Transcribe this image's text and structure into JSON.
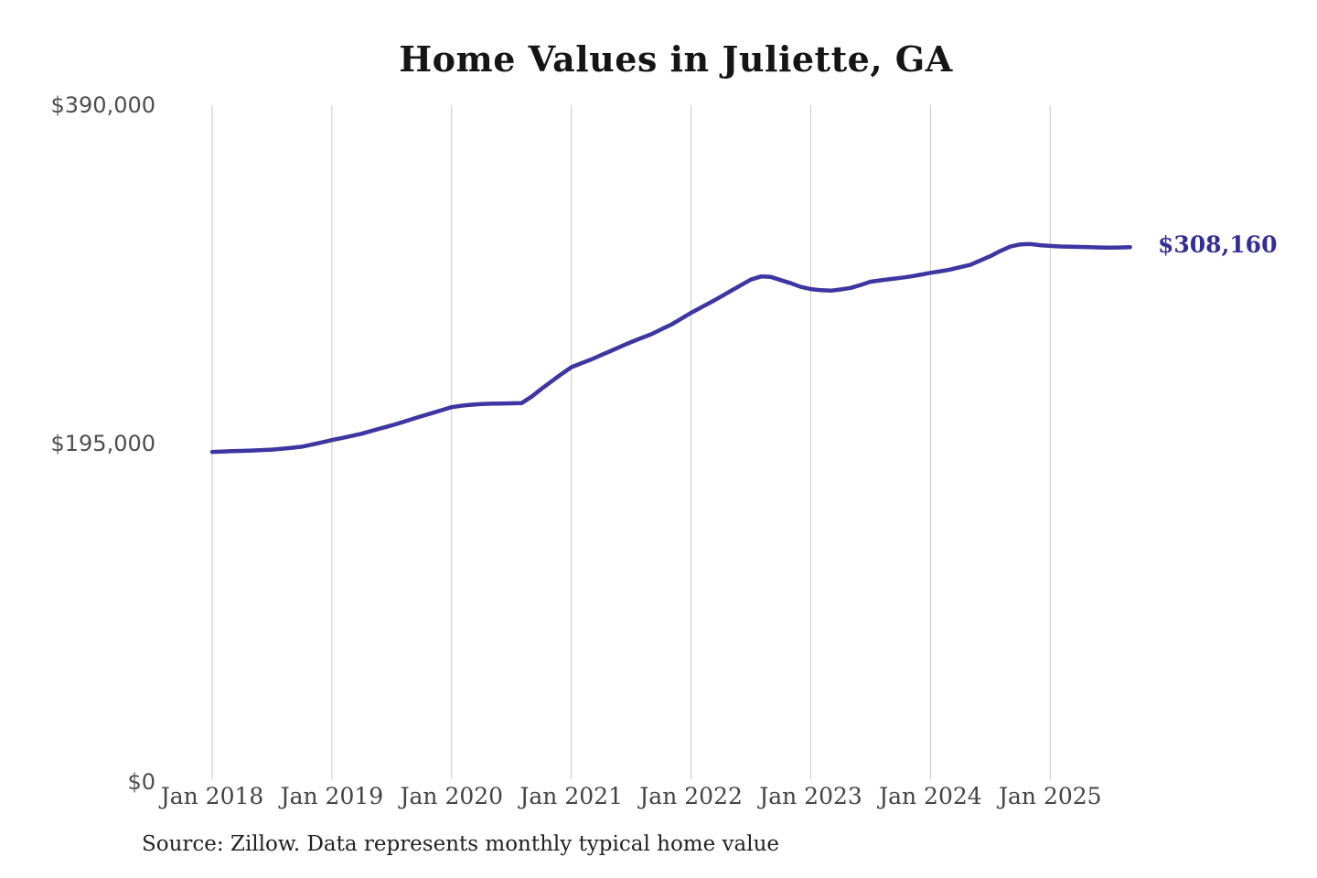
{
  "page": {
    "title": "Home Values in Juliette, GA",
    "source_note": "Source: Zillow. Data represents monthly typical home value"
  },
  "colors": {
    "line": "#3d35a1",
    "end_label": "#342d97",
    "grid": "#c9c9c9",
    "y_tick_text": "#4d4d4d",
    "x_tick_text": "#434343",
    "title_text": "#151515",
    "source_text": "#222222",
    "background": "#ffffff"
  },
  "chart_data": {
    "type": "line",
    "title": "Home Values in Juliette, GA",
    "xlabel": "",
    "ylabel": "",
    "x_start": "2018-01",
    "x_end": "2025-09",
    "x_interval": "monthly",
    "x_tick_labels": [
      "Jan 2018",
      "Jan 2019",
      "Jan 2020",
      "Jan 2021",
      "Jan 2022",
      "Jan 2023",
      "Jan 2024",
      "Jan 2025"
    ],
    "y_ticks": [
      {
        "label": "$0",
        "value": 0
      },
      {
        "label": "$195,000",
        "value": 195000
      },
      {
        "label": "$390,000",
        "value": 390000
      }
    ],
    "ylim": [
      0,
      390000
    ],
    "grid": "vertical-only",
    "legend": "none",
    "end_value": 308160,
    "end_value_label": "$308,160",
    "series": [
      {
        "name": "Monthly typical home value",
        "values": [
          190200,
          190400,
          190600,
          190800,
          191000,
          191250,
          191500,
          192050,
          192600,
          193200,
          194400,
          195700,
          197000,
          198200,
          199450,
          200700,
          202300,
          203900,
          205500,
          207250,
          209000,
          210800,
          212500,
          214250,
          216000,
          216800,
          217400,
          217800,
          218000,
          218100,
          218200,
          218300,
          222000,
          226500,
          230800,
          235000,
          239000,
          241250,
          243500,
          246000,
          248500,
          251000,
          253500,
          255800,
          258000,
          260800,
          263500,
          266900,
          270300,
          273400,
          276500,
          279700,
          283000,
          286300,
          289500,
          291300,
          291000,
          289200,
          287400,
          285300,
          284000,
          283400,
          283100,
          283800,
          284700,
          286400,
          288300,
          289100,
          289800,
          290500,
          291300,
          292300,
          293400,
          294300,
          295300,
          296650,
          298000,
          300500,
          303000,
          306000,
          308500,
          309800,
          310000,
          309300,
          308900,
          308600,
          308400,
          308300,
          308200,
          308000,
          307900,
          308000,
          308160
        ]
      }
    ]
  }
}
